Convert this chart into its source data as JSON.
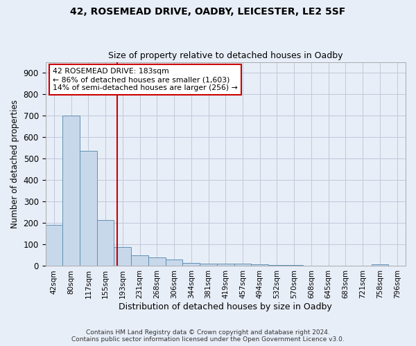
{
  "title_line1": "42, ROSEMEAD DRIVE, OADBY, LEICESTER, LE2 5SF",
  "title_line2": "Size of property relative to detached houses in Oadby",
  "xlabel": "Distribution of detached houses by size in Oadby",
  "ylabel": "Number of detached properties",
  "categories": [
    "42sqm",
    "80sqm",
    "117sqm",
    "155sqm",
    "193sqm",
    "231sqm",
    "268sqm",
    "306sqm",
    "344sqm",
    "381sqm",
    "419sqm",
    "457sqm",
    "494sqm",
    "532sqm",
    "570sqm",
    "608sqm",
    "645sqm",
    "683sqm",
    "721sqm",
    "758sqm",
    "796sqm"
  ],
  "values": [
    190,
    700,
    535,
    215,
    90,
    50,
    40,
    30,
    15,
    10,
    10,
    10,
    8,
    5,
    5,
    0,
    0,
    0,
    0,
    8,
    0
  ],
  "bar_color": "#c8d8eb",
  "bar_edge_color": "#6090b0",
  "grid_color": "#c0c8d8",
  "background_color": "#e8eef8",
  "vline_x": 3.67,
  "vline_color": "#cc0000",
  "annotation_text": "42 ROSEMEAD DRIVE: 183sqm\n← 86% of detached houses are smaller (1,603)\n14% of semi-detached houses are larger (256) →",
  "annotation_box_color": "white",
  "annotation_box_edge_color": "#cc0000",
  "ylim": [
    0,
    950
  ],
  "yticks": [
    0,
    100,
    200,
    300,
    400,
    500,
    600,
    700,
    800,
    900
  ],
  "footer_line1": "Contains HM Land Registry data © Crown copyright and database right 2024.",
  "footer_line2": "Contains public sector information licensed under the Open Government Licence v3.0."
}
